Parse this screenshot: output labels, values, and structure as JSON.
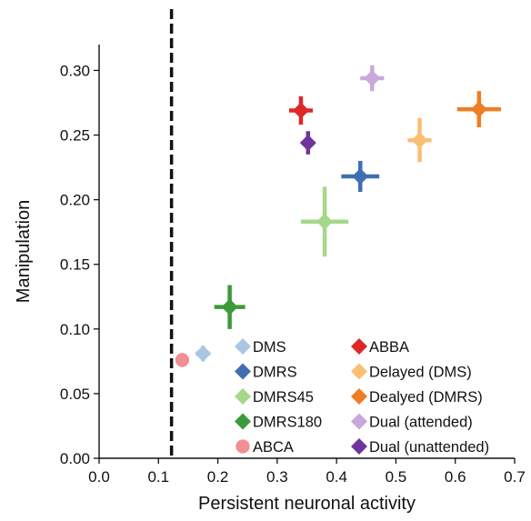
{
  "chart_data": {
    "type": "scatter",
    "xlabel": "Persistent neuronal activity",
    "ylabel": "Manipulation",
    "xlim": [
      0.0,
      0.7
    ],
    "ylim": [
      0.0,
      0.32
    ],
    "x_ticks": [
      "0.0",
      "0.1",
      "0.2",
      "0.3",
      "0.4",
      "0.5",
      "0.6",
      "0.7"
    ],
    "y_ticks": [
      "0.00",
      "0.05",
      "0.10",
      "0.15",
      "0.20",
      "0.25",
      "0.30"
    ],
    "reference_line": {
      "x": 0.122,
      "style": "dashed"
    },
    "legend_placement": "bottom-right",
    "series": [
      {
        "name": "DMS",
        "color": "#a9c7e3",
        "marker": "diamond",
        "x": 0.175,
        "y": 0.081,
        "xerr": 0.012,
        "yerr": 0.006
      },
      {
        "name": "DMRS",
        "color": "#3f6fb0",
        "marker": "diamond",
        "x": 0.44,
        "y": 0.218,
        "xerr": 0.032,
        "yerr": 0.012
      },
      {
        "name": "DMRS45",
        "color": "#a6d88a",
        "marker": "diamond",
        "x": 0.38,
        "y": 0.183,
        "xerr": 0.04,
        "yerr": 0.027
      },
      {
        "name": "DMRS180",
        "color": "#3d9a3a",
        "marker": "diamond",
        "x": 0.22,
        "y": 0.117,
        "xerr": 0.026,
        "yerr": 0.017
      },
      {
        "name": "ABCA",
        "color": "#f08f94",
        "marker": "circle",
        "x": 0.14,
        "y": 0.076,
        "xerr": 0,
        "yerr": 0
      },
      {
        "name": "ABBA",
        "color": "#e02727",
        "marker": "diamond",
        "x": 0.34,
        "y": 0.269,
        "xerr": 0.02,
        "yerr": 0.011
      },
      {
        "name": "Delayed (DMS)",
        "color": "#fbbe75",
        "marker": "diamond",
        "x": 0.54,
        "y": 0.246,
        "xerr": 0.02,
        "yerr": 0.017
      },
      {
        "name": "Dealyed (DMRS)",
        "color": "#ef7d24",
        "marker": "diamond",
        "x": 0.64,
        "y": 0.27,
        "xerr": 0.037,
        "yerr": 0.014
      },
      {
        "name": "Dual (attended)",
        "color": "#c9a8db",
        "marker": "diamond",
        "x": 0.46,
        "y": 0.294,
        "xerr": 0.02,
        "yerr": 0.01
      },
      {
        "name": "Dual (unattended)",
        "color": "#6e359c",
        "marker": "diamond",
        "x": 0.352,
        "y": 0.244,
        "xerr": 0.011,
        "yerr": 0.009
      }
    ]
  }
}
